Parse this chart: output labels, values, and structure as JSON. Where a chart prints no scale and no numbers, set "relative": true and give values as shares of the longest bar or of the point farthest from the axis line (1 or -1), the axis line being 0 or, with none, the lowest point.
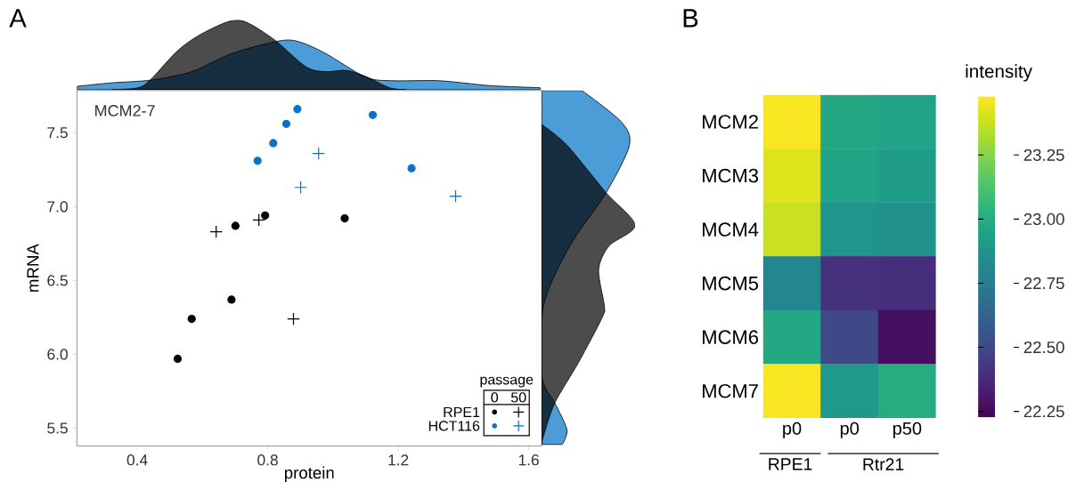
{
  "chart_data": [
    {
      "type": "scatter",
      "title": "A",
      "xlabel": "protein",
      "ylabel": "mRNA",
      "legend_title": "passage",
      "annotations": [
        "MCM2-7",
        "0",
        "50",
        "RPE1",
        "HCT116"
      ],
      "xlim": [
        0.215,
        1.64
      ],
      "ylim": [
        5.38,
        7.786
      ],
      "xticks": [
        0.4,
        0.8,
        1.2,
        1.6
      ],
      "yticks": [
        5.5,
        {
          "value": 6,
          "label": "6.0"
        },
        6.5,
        {
          "value": 7,
          "label": "7.0"
        },
        7.5
      ],
      "series": [
        {
          "marker": "circle",
          "color": "#000000",
          "x": [
            0.524,
            0.567,
            0.689,
            0.701,
            0.792,
            1.036
          ],
          "values": [
            5.97,
            6.24,
            6.37,
            6.87,
            6.94,
            6.92
          ]
        },
        {
          "marker": "cross",
          "color": "#000000",
          "x": [
            0.642,
            0.773,
            0.879
          ],
          "values": [
            6.83,
            6.91,
            6.24
          ]
        },
        {
          "marker": "circle",
          "color": "#0a72c4",
          "x": [
            0.769,
            0.817,
            0.857,
            0.891,
            1.122,
            1.241
          ],
          "values": [
            7.31,
            7.43,
            7.56,
            7.66,
            7.62,
            7.26
          ]
        },
        {
          "marker": "cross",
          "color": "#0a72c4",
          "x": [
            0.901,
            0.956,
            1.376
          ],
          "values": [
            7.13,
            7.36,
            7.07
          ]
        }
      ]
    },
    {
      "type": "area",
      "relative": true,
      "tick_labels": false,
      "xlim": [
        0.215,
        1.64
      ],
      "series": [
        {
          "color": "#0072c6",
          "x": [
            0.216,
            0.321,
            0.444,
            0.567,
            0.69,
            0.834,
            0.896,
            0.978,
            1.101,
            1.184,
            1.327,
            1.481,
            1.635
          ],
          "values": [
            0.05,
            0.1,
            0.14,
            0.26,
            0.52,
            0.7,
            0.69,
            0.52,
            0.18,
            0.13,
            0.13,
            0.06,
            0.03
          ]
        },
        {
          "color": "#000000",
          "x": [
            0.321,
            0.403,
            0.444,
            0.526,
            0.608,
            0.711,
            0.814,
            0.917,
            0.978,
            1.04,
            1.101,
            1.173,
            1.225
          ],
          "values": [
            0,
            0.03,
            0.16,
            0.57,
            0.83,
            1,
            0.74,
            0.33,
            0.26,
            0.28,
            0.19,
            0.03,
            0
          ]
        }
      ]
    },
    {
      "type": "area",
      "relative": true,
      "orientation": "horizontal",
      "tick_labels": false,
      "ylim": [
        5.38,
        7.786
      ],
      "series": [
        {
          "color": "#0072c6",
          "x": [
            7.786,
            7.576,
            7.416,
            7.094,
            6.733,
            6.333,
            5.852,
            5.671,
            5.49,
            5.39
          ],
          "values": [
            0.43,
            0.85,
            0.94,
            0.69,
            0.3,
            0.02,
            0,
            0.14,
            0.27,
            0.22
          ]
        },
        {
          "color": "#000000",
          "x": [
            7.556,
            7.416,
            7.094,
            6.874,
            6.733,
            6.573,
            6.333,
            6.252,
            5.951,
            5.671,
            5.45,
            5.39
          ],
          "values": [
            0,
            0.27,
            0.69,
            1,
            0.72,
            0.61,
            0.67,
            0.65,
            0.4,
            0.14,
            0.02,
            0
          ]
        }
      ]
    },
    {
      "type": "heatmap",
      "title": "B",
      "clabel": "intensity",
      "annotations": [
        "RPE1",
        "Rtr21"
      ],
      "categories": [
        "p0",
        "p0",
        "p50"
      ],
      "y_categories": [
        "MCM2",
        "MCM3",
        "MCM4",
        "MCM5",
        "MCM6",
        "MCM7"
      ],
      "cells": [
        [
          23.47,
          22.98,
          22.95
        ],
        [
          23.42,
          22.95,
          22.92
        ],
        [
          23.38,
          22.88,
          22.86
        ],
        [
          22.8,
          22.4,
          22.39
        ],
        [
          22.98,
          22.5,
          22.27
        ],
        [
          23.47,
          22.9,
          23.0
        ]
      ],
      "clim": [
        22.227,
        23.479
      ],
      "cticks": [
        22.25,
        {
          "value": 22.5,
          "label": "22.50"
        },
        22.75,
        {
          "value": 23,
          "label": "23.00"
        },
        23.25
      ]
    }
  ]
}
